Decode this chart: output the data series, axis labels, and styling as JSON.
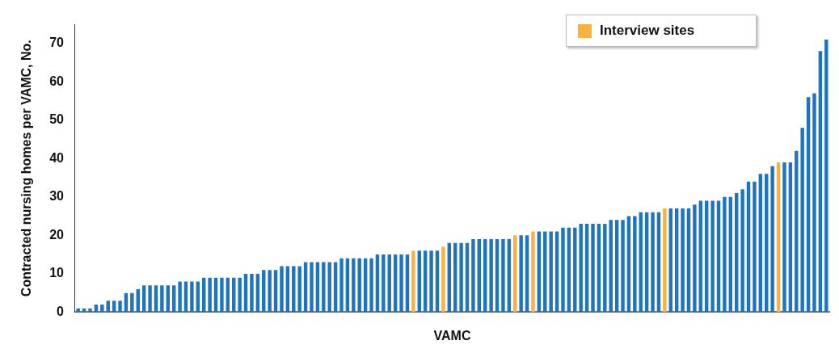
{
  "chart_data": {
    "type": "bar",
    "xlabel": "VAMC",
    "ylabel": "Contracted nursing homes per VAMC, No.",
    "categories": [
      null,
      null,
      null,
      null,
      null,
      null,
      null,
      null,
      null,
      null,
      null,
      null,
      null,
      null,
      null,
      null,
      null,
      null,
      null,
      null,
      null,
      null,
      null,
      null,
      null,
      null,
      null,
      null,
      null,
      null,
      null,
      null,
      null,
      null,
      null,
      null,
      null,
      null,
      null,
      null,
      null,
      null,
      null,
      null,
      null,
      null,
      null,
      null,
      null,
      null,
      null,
      null,
      null,
      null,
      null,
      null,
      null,
      null,
      null,
      null,
      null,
      null,
      null,
      null,
      null,
      null,
      null,
      null,
      null,
      null,
      null,
      null,
      null,
      null,
      null,
      null,
      null,
      null,
      null,
      null,
      null,
      null,
      null,
      null,
      null,
      null,
      null,
      null,
      null,
      null,
      null,
      null,
      null,
      null,
      null,
      null,
      null,
      null,
      null,
      null,
      null,
      null,
      null,
      null,
      null,
      null,
      null,
      null,
      null,
      null,
      null,
      null,
      null,
      null,
      null,
      null,
      null,
      null,
      null,
      null,
      null,
      null,
      null,
      null,
      null,
      null
    ],
    "series": [
      {
        "color": "#1f75bd",
        "values": [
          1,
          1,
          1,
          2,
          2,
          3,
          3,
          3,
          5,
          5,
          6,
          7,
          7,
          7,
          7,
          7,
          7,
          8,
          8,
          8,
          8,
          9,
          9,
          9,
          9,
          9,
          9,
          9,
          10,
          10,
          10,
          11,
          11,
          11,
          12,
          12,
          12,
          12,
          13,
          13,
          13,
          13,
          13,
          13,
          14,
          14,
          14,
          14,
          14,
          14,
          15,
          15,
          15,
          15,
          15,
          15,
          null,
          16,
          16,
          16,
          16,
          null,
          18,
          18,
          18,
          18,
          19,
          19,
          19,
          19,
          19,
          19,
          19,
          null,
          20,
          20,
          null,
          21,
          21,
          21,
          21,
          22,
          22,
          22,
          23,
          23,
          23,
          23,
          23,
          24,
          24,
          24,
          25,
          25,
          26,
          26,
          26,
          26,
          null,
          27,
          27,
          27,
          27,
          28,
          29,
          29,
          29,
          29,
          30,
          30,
          31,
          32,
          34,
          34,
          36,
          36,
          38,
          null,
          39,
          39,
          42,
          48,
          56,
          57,
          68,
          71
        ]
      },
      {
        "name": "Interview sites",
        "color": "#fbb040",
        "values": [
          null,
          null,
          null,
          null,
          null,
          null,
          null,
          null,
          null,
          null,
          null,
          null,
          null,
          null,
          null,
          null,
          null,
          null,
          null,
          null,
          null,
          null,
          null,
          null,
          null,
          null,
          null,
          null,
          null,
          null,
          null,
          null,
          null,
          null,
          null,
          null,
          null,
          null,
          null,
          null,
          null,
          null,
          null,
          null,
          null,
          null,
          null,
          null,
          null,
          null,
          null,
          null,
          null,
          null,
          null,
          null,
          16,
          null,
          null,
          null,
          null,
          17,
          null,
          null,
          null,
          null,
          null,
          null,
          null,
          null,
          null,
          null,
          null,
          20,
          null,
          null,
          21,
          null,
          null,
          null,
          null,
          null,
          null,
          null,
          null,
          null,
          null,
          null,
          null,
          null,
          null,
          null,
          null,
          null,
          null,
          null,
          null,
          null,
          27,
          null,
          null,
          null,
          null,
          null,
          null,
          null,
          null,
          null,
          null,
          null,
          null,
          null,
          null,
          null,
          null,
          null,
          null,
          39,
          null,
          null,
          null,
          null,
          null,
          null,
          null,
          null
        ]
      }
    ],
    "ylim": [
      0,
      75
    ],
    "yticks": [
      0,
      10,
      20,
      30,
      40,
      50,
      60,
      70
    ],
    "grid": false,
    "legend": "top right"
  }
}
